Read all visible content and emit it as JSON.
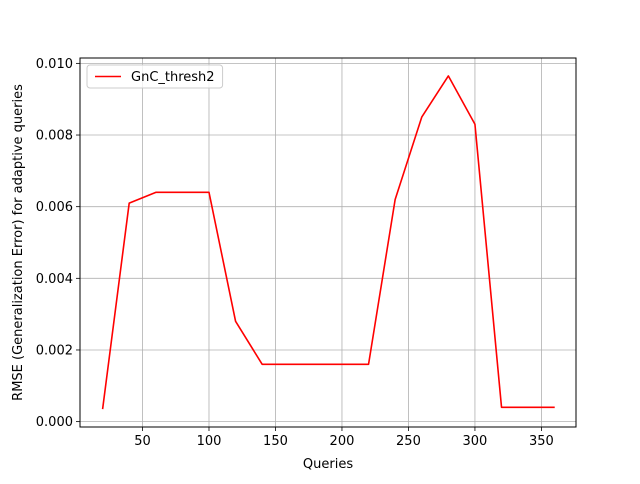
{
  "chart_data": {
    "type": "line",
    "title": "",
    "xlabel": "Queries",
    "ylabel": "RMSE (Generalization Error) for adaptive queries",
    "xlim": [
      3,
      376
    ],
    "ylim": [
      -0.00015,
      0.01015
    ],
    "xticks": [
      50,
      100,
      150,
      200,
      250,
      300,
      350
    ],
    "xtick_labels": [
      "50",
      "100",
      "150",
      "200",
      "250",
      "300",
      "350"
    ],
    "yticks": [
      0.0,
      0.002,
      0.004,
      0.006,
      0.008,
      0.01
    ],
    "ytick_labels": [
      "0.000",
      "0.002",
      "0.004",
      "0.006",
      "0.008",
      "0.010"
    ],
    "grid": true,
    "legend_position": "upper left",
    "series": [
      {
        "name": "GnC_thresh2",
        "color": "#ff0000",
        "x": [
          20,
          40,
          60,
          80,
          100,
          120,
          140,
          160,
          180,
          200,
          220,
          240,
          260,
          280,
          300,
          320,
          340,
          360
        ],
        "y": [
          0.00035,
          0.0061,
          0.0064,
          0.0064,
          0.0064,
          0.0028,
          0.0016,
          0.0016,
          0.0016,
          0.0016,
          0.0016,
          0.0062,
          0.0085,
          0.00965,
          0.0083,
          0.0004,
          0.0004,
          0.0004
        ]
      }
    ]
  }
}
